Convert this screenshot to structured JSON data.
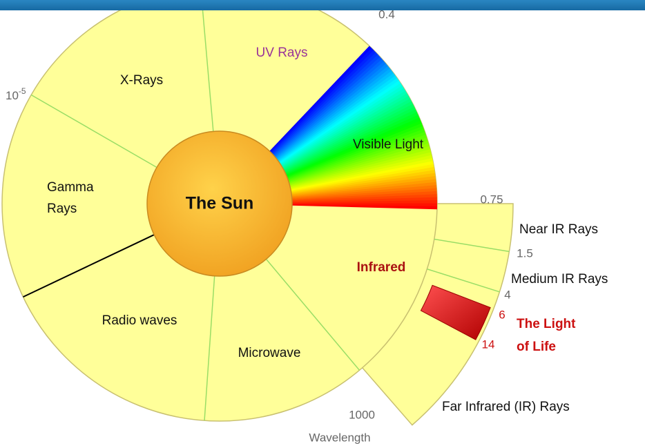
{
  "center": {
    "label": "The Sun"
  },
  "sectors": {
    "uv": "UV Rays",
    "xray": "X-Rays",
    "visible": "Visible Light",
    "gamma": [
      "Gamma",
      "Rays"
    ],
    "infrared": "Infrared",
    "radio": "Radio waves",
    "microwave": "Microwave"
  },
  "infrared_bands": {
    "near": "Near IR Rays",
    "medium": "Medium IR Rays",
    "life": [
      "The Light",
      "of Life"
    ],
    "far": "Far Infrared (IR) Rays"
  },
  "wavelengths": {
    "gamma_xray": {
      "base": "10",
      "exponent": "-5"
    },
    "uv_visible": "0.4",
    "visible_ir": "0.75",
    "near_medium": "1.5",
    "medium_far": "4",
    "life_start": "6",
    "life_end": "14",
    "ir_end": "1000"
  },
  "axis_label": "Wavelength"
}
